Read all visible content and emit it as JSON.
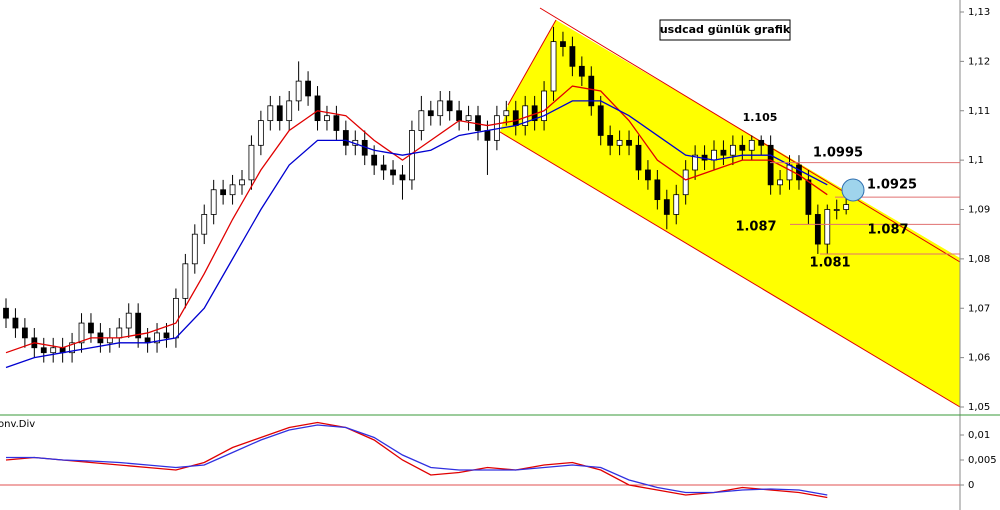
{
  "chart_data": {
    "type": "candlestick",
    "title": "usdcad  günlük grafik",
    "indicator_label": "onv.Div",
    "candles": [
      [
        1.07,
        1.072,
        1.066,
        1.068
      ],
      [
        1.068,
        1.07,
        1.064,
        1.066
      ],
      [
        1.066,
        1.068,
        1.062,
        1.064
      ],
      [
        1.064,
        1.066,
        1.06,
        1.062
      ],
      [
        1.062,
        1.064,
        1.059,
        1.061
      ],
      [
        1.061,
        1.064,
        1.059,
        1.062
      ],
      [
        1.062,
        1.064,
        1.059,
        1.061
      ],
      [
        1.061,
        1.065,
        1.059,
        1.063
      ],
      [
        1.063,
        1.069,
        1.061,
        1.067
      ],
      [
        1.067,
        1.069,
        1.063,
        1.065
      ],
      [
        1.065,
        1.067,
        1.061,
        1.063
      ],
      [
        1.063,
        1.066,
        1.061,
        1.064
      ],
      [
        1.064,
        1.068,
        1.062,
        1.066
      ],
      [
        1.066,
        1.071,
        1.064,
        1.069
      ],
      [
        1.069,
        1.071,
        1.062,
        1.064
      ],
      [
        1.064,
        1.066,
        1.061,
        1.063
      ],
      [
        1.063,
        1.067,
        1.061,
        1.065
      ],
      [
        1.065,
        1.067,
        1.062,
        1.064
      ],
      [
        1.064,
        1.074,
        1.062,
        1.072
      ],
      [
        1.072,
        1.081,
        1.07,
        1.079
      ],
      [
        1.079,
        1.087,
        1.077,
        1.085
      ],
      [
        1.085,
        1.091,
        1.083,
        1.089
      ],
      [
        1.089,
        1.096,
        1.087,
        1.094
      ],
      [
        1.094,
        1.096,
        1.091,
        1.093
      ],
      [
        1.093,
        1.097,
        1.091,
        1.095
      ],
      [
        1.095,
        1.098,
        1.093,
        1.096
      ],
      [
        1.096,
        1.105,
        1.094,
        1.103
      ],
      [
        1.103,
        1.11,
        1.101,
        1.108
      ],
      [
        1.108,
        1.113,
        1.106,
        1.111
      ],
      [
        1.111,
        1.113,
        1.106,
        1.108
      ],
      [
        1.108,
        1.114,
        1.106,
        1.112
      ],
      [
        1.112,
        1.12,
        1.11,
        1.116
      ],
      [
        1.116,
        1.118,
        1.111,
        1.113
      ],
      [
        1.113,
        1.115,
        1.106,
        1.108
      ],
      [
        1.108,
        1.111,
        1.106,
        1.109
      ],
      [
        1.109,
        1.111,
        1.104,
        1.106
      ],
      [
        1.106,
        1.108,
        1.101,
        1.103
      ],
      [
        1.103,
        1.106,
        1.101,
        1.104
      ],
      [
        1.104,
        1.106,
        1.099,
        1.101
      ],
      [
        1.101,
        1.103,
        1.097,
        1.099
      ],
      [
        1.099,
        1.101,
        1.096,
        1.098
      ],
      [
        1.098,
        1.1,
        1.095,
        1.097
      ],
      [
        1.097,
        1.099,
        1.092,
        1.096
      ],
      [
        1.096,
        1.108,
        1.094,
        1.106
      ],
      [
        1.106,
        1.113,
        1.104,
        1.11
      ],
      [
        1.11,
        1.112,
        1.107,
        1.109
      ],
      [
        1.109,
        1.114,
        1.107,
        1.112
      ],
      [
        1.112,
        1.114,
        1.108,
        1.11
      ],
      [
        1.11,
        1.112,
        1.106,
        1.108
      ],
      [
        1.108,
        1.111,
        1.106,
        1.109
      ],
      [
        1.109,
        1.111,
        1.104,
        1.106
      ],
      [
        1.106,
        1.108,
        1.097,
        1.104
      ],
      [
        1.104,
        1.111,
        1.102,
        1.109
      ],
      [
        1.109,
        1.112,
        1.107,
        1.11
      ],
      [
        1.11,
        1.112,
        1.105,
        1.107
      ],
      [
        1.107,
        1.113,
        1.105,
        1.111
      ],
      [
        1.111,
        1.113,
        1.106,
        1.108
      ],
      [
        1.108,
        1.116,
        1.106,
        1.114
      ],
      [
        1.114,
        1.127,
        1.112,
        1.124
      ],
      [
        1.124,
        1.126,
        1.121,
        1.123
      ],
      [
        1.123,
        1.125,
        1.117,
        1.119
      ],
      [
        1.119,
        1.121,
        1.115,
        1.117
      ],
      [
        1.117,
        1.119,
        1.109,
        1.111
      ],
      [
        1.111,
        1.113,
        1.103,
        1.105
      ],
      [
        1.105,
        1.107,
        1.101,
        1.103
      ],
      [
        1.103,
        1.106,
        1.101,
        1.104
      ],
      [
        1.104,
        1.106,
        1.101,
        1.103
      ],
      [
        1.103,
        1.105,
        1.096,
        1.098
      ],
      [
        1.098,
        1.1,
        1.094,
        1.096
      ],
      [
        1.096,
        1.098,
        1.09,
        1.092
      ],
      [
        1.092,
        1.094,
        1.086,
        1.089
      ],
      [
        1.089,
        1.095,
        1.087,
        1.093
      ],
      [
        1.093,
        1.1,
        1.091,
        1.098
      ],
      [
        1.098,
        1.103,
        1.096,
        1.101
      ],
      [
        1.101,
        1.103,
        1.098,
        1.1
      ],
      [
        1.1,
        1.104,
        1.098,
        1.102
      ],
      [
        1.102,
        1.104,
        1.099,
        1.101
      ],
      [
        1.101,
        1.105,
        1.099,
        1.103
      ],
      [
        1.103,
        1.105,
        1.1,
        1.102
      ],
      [
        1.102,
        1.105,
        1.1,
        1.104
      ],
      [
        1.104,
        1.105,
        1.101,
        1.103
      ],
      [
        1.103,
        1.105,
        1.093,
        1.095
      ],
      [
        1.095,
        1.098,
        1.093,
        1.096
      ],
      [
        1.096,
        1.101,
        1.094,
        1.099
      ],
      [
        1.099,
        1.101,
        1.094,
        1.096
      ],
      [
        1.096,
        1.098,
        1.087,
        1.089
      ],
      [
        1.089,
        1.091,
        1.081,
        1.083
      ],
      [
        1.083,
        1.091,
        1.081,
        1.09
      ],
      [
        1.09,
        1.092,
        1.088,
        1.09
      ],
      [
        1.09,
        1.093,
        1.089,
        1.091
      ]
    ],
    "ma_index": [
      0,
      3,
      6,
      9,
      12,
      15,
      18,
      21,
      24,
      27,
      30,
      33,
      36,
      39,
      42,
      45,
      48,
      51,
      54,
      57,
      60,
      63,
      66,
      69,
      72,
      75,
      78,
      81,
      84,
      87
    ],
    "series": [
      {
        "color": "#e00000",
        "values": [
          1.061,
          1.063,
          1.062,
          1.064,
          1.064,
          1.065,
          1.067,
          1.077,
          1.088,
          1.098,
          1.106,
          1.11,
          1.109,
          1.104,
          1.1,
          1.104,
          1.108,
          1.107,
          1.108,
          1.11,
          1.115,
          1.114,
          1.108,
          1.1,
          1.096,
          1.098,
          1.1,
          1.1,
          1.097,
          1.093
        ]
      },
      {
        "color": "#0000d0",
        "values": [
          1.058,
          1.06,
          1.061,
          1.062,
          1.063,
          1.063,
          1.064,
          1.07,
          1.08,
          1.09,
          1.099,
          1.104,
          1.104,
          1.102,
          1.101,
          1.102,
          1.105,
          1.106,
          1.107,
          1.109,
          1.112,
          1.112,
          1.109,
          1.105,
          1.101,
          1.1,
          1.101,
          1.101,
          1.098,
          1.095
        ]
      }
    ],
    "indicator_series": [
      {
        "color": "#e00000",
        "values": [
          0.005,
          0.0055,
          0.005,
          0.0045,
          0.004,
          0.0035,
          0.003,
          0.0045,
          0.0075,
          0.0095,
          0.0115,
          0.0125,
          0.0115,
          0.009,
          0.005,
          0.002,
          0.0025,
          0.0035,
          0.003,
          0.004,
          0.0045,
          0.003,
          0,
          -0.001,
          -0.002,
          -0.0015,
          -0.0005,
          -0.001,
          -0.0015,
          -0.0025
        ]
      },
      {
        "color": "#3030e0",
        "values": [
          0.0055,
          0.0055,
          0.005,
          0.0048,
          0.0045,
          0.004,
          0.0035,
          0.004,
          0.0065,
          0.009,
          0.011,
          0.012,
          0.0115,
          0.0095,
          0.006,
          0.0035,
          0.003,
          0.003,
          0.003,
          0.0035,
          0.004,
          0.0035,
          0.001,
          -0.0005,
          -0.0015,
          -0.0015,
          -0.001,
          -0.0008,
          -0.001,
          -0.002
        ]
      }
    ],
    "ylim": [
      1.05,
      1.13
    ],
    "yticks": [
      {
        "value": 1.05,
        "label": "1,05"
      },
      {
        "value": 1.06,
        "label": "1,06"
      },
      {
        "value": 1.07,
        "label": "1,07"
      },
      {
        "value": 1.08,
        "label": "1,08"
      },
      {
        "value": 1.09,
        "label": "1,09"
      },
      {
        "value": 1.1,
        "label": "1,1"
      },
      {
        "value": 1.11,
        "label": "1,11"
      },
      {
        "value": 1.12,
        "label": "1,12"
      },
      {
        "value": 1.13,
        "label": "1,13"
      }
    ],
    "y2lim": [
      -0.005,
      0.014
    ],
    "y2ticks": [
      0,
      {
        "value": 0.005,
        "label": "0,005"
      },
      {
        "value": 0.01,
        "label": "0,01"
      }
    ],
    "annotations": [
      {
        "label": "1.105",
        "value": 1.105
      },
      {
        "label": "1.0995",
        "value": 1.0995
      },
      {
        "label": "1.0925",
        "value": 1.0925
      },
      {
        "label": "1.087",
        "value": 1.087
      },
      {
        "label": "1.087",
        "value": 1.087
      },
      {
        "label": "1.081",
        "value": 1.081
      }
    ]
  }
}
